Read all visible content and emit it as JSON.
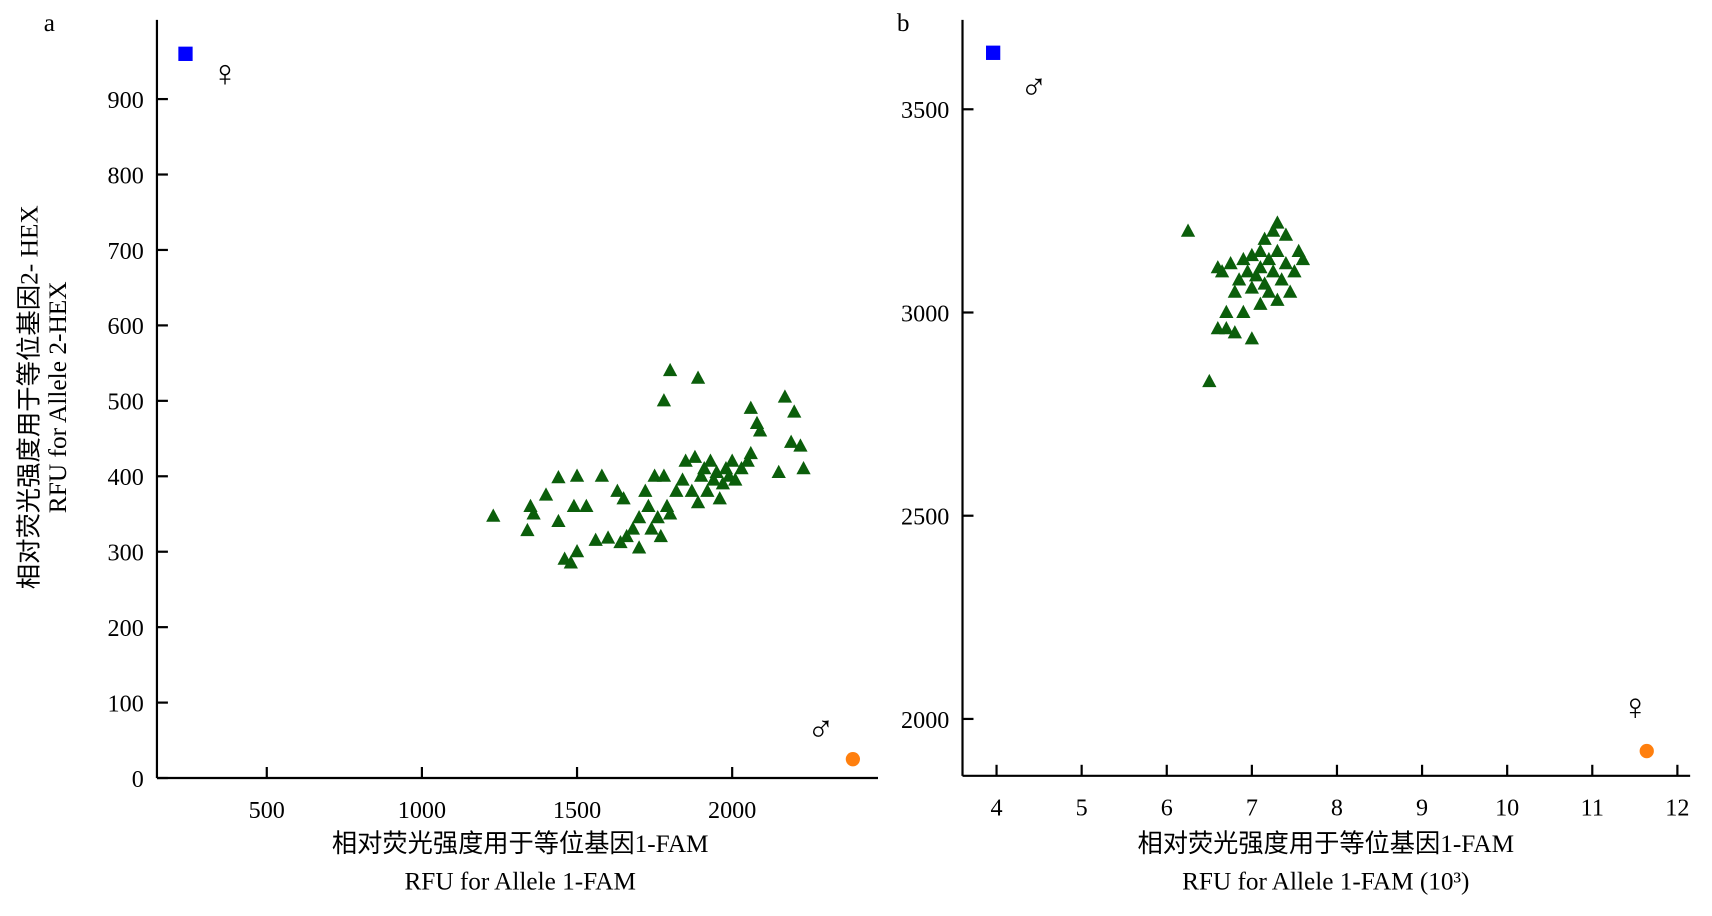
{
  "chart_data": [
    {
      "type": "scatter",
      "panel_label": "a",
      "x_label": [
        "相对荧光强度用于等位基因1-FAM",
        "RFU for Allele 1-FAM"
      ],
      "y_label": [
        "相对荧光强度用于等位基因2- HEX",
        "RFU for Allele 2-HEX"
      ],
      "annotations": [
        "♀",
        "♂"
      ],
      "xlim": [
        146,
        2470
      ],
      "ylim": [
        0,
        1005
      ],
      "xticks": [
        500,
        1000,
        1500,
        2000
      ],
      "yticks": [
        0,
        100,
        200,
        300,
        400,
        500,
        600,
        700,
        800,
        900
      ],
      "series": [
        {
          "marker": "triangle",
          "color": "#0b5e0b",
          "x": [
            1230,
            1340,
            1350,
            1360,
            1400,
            1440,
            1440,
            1460,
            1480,
            1490,
            1500,
            1500,
            1530,
            1560,
            1580,
            1600,
            1630,
            1640,
            1650,
            1660,
            1680,
            1700,
            1700,
            1720,
            1730,
            1740,
            1750,
            1760,
            1770,
            1780,
            1780,
            1790,
            1800,
            1800,
            1820,
            1840,
            1850,
            1870,
            1880,
            1890,
            1890,
            1900,
            1910,
            1920,
            1930,
            1940,
            1950,
            1960,
            1970,
            1980,
            1990,
            2000,
            2010,
            2030,
            2050,
            2060,
            2060,
            2080,
            2090,
            2150,
            2170,
            2190,
            2200,
            2220,
            2230
          ],
          "values": [
            347,
            328,
            360,
            350,
            375,
            398,
            340,
            290,
            285,
            360,
            400,
            300,
            360,
            315,
            400,
            318,
            380,
            312,
            370,
            320,
            330,
            345,
            305,
            380,
            360,
            330,
            400,
            345,
            320,
            500,
            400,
            360,
            350,
            540,
            380,
            395,
            420,
            380,
            425,
            530,
            365,
            400,
            410,
            380,
            420,
            395,
            405,
            370,
            390,
            410,
            400,
            420,
            395,
            410,
            420,
            430,
            490,
            470,
            460,
            405,
            505,
            445,
            485,
            440,
            410
          ]
        },
        {
          "marker": "square",
          "color": "#0000ff",
          "x": [
            238
          ],
          "values": [
            960
          ]
        },
        {
          "marker": "circle",
          "color": "#ff7f0e",
          "x": [
            2389
          ],
          "values": [
            25
          ]
        }
      ]
    },
    {
      "type": "scatter",
      "panel_label": "b",
      "x_label": [
        "相对荧光强度用于等位基因1-FAM",
        "RFU for Allele 1-FAM (10³)"
      ],
      "annotations": [
        "♂",
        "♀"
      ],
      "xlim": [
        3.6,
        12.15
      ],
      "ylim": [
        1860,
        3720
      ],
      "xticks": [
        4,
        5,
        6,
        7,
        8,
        9,
        10,
        11,
        12
      ],
      "yticks": [
        2000,
        2500,
        3000,
        3500
      ],
      "series": [
        {
          "marker": "triangle",
          "color": "#0b5e0b",
          "x": [
            6.25,
            6.5,
            6.6,
            6.6,
            6.65,
            6.7,
            6.7,
            6.75,
            6.8,
            6.8,
            6.85,
            6.9,
            6.9,
            6.95,
            7.0,
            7.0,
            7.0,
            7.05,
            7.1,
            7.1,
            7.1,
            7.15,
            7.15,
            7.2,
            7.2,
            7.25,
            7.25,
            7.3,
            7.3,
            7.3,
            7.35,
            7.4,
            7.4,
            7.45,
            7.5,
            7.55,
            7.6
          ],
          "values": [
            3200,
            2830,
            2960,
            3110,
            3100,
            3000,
            2960,
            3120,
            3050,
            2950,
            3080,
            3130,
            3000,
            3100,
            2935,
            3140,
            3060,
            3090,
            3150,
            3020,
            3110,
            3180,
            3070,
            3130,
            3050,
            3200,
            3100,
            3030,
            3150,
            3220,
            3080,
            3190,
            3120,
            3050,
            3100,
            3150,
            3130
          ]
        },
        {
          "marker": "square",
          "color": "#0000ff",
          "x": [
            3.96
          ],
          "values": [
            3639
          ]
        },
        {
          "marker": "circle",
          "color": "#ff7f0e",
          "x": [
            11.64
          ],
          "values": [
            1921
          ]
        }
      ]
    }
  ]
}
